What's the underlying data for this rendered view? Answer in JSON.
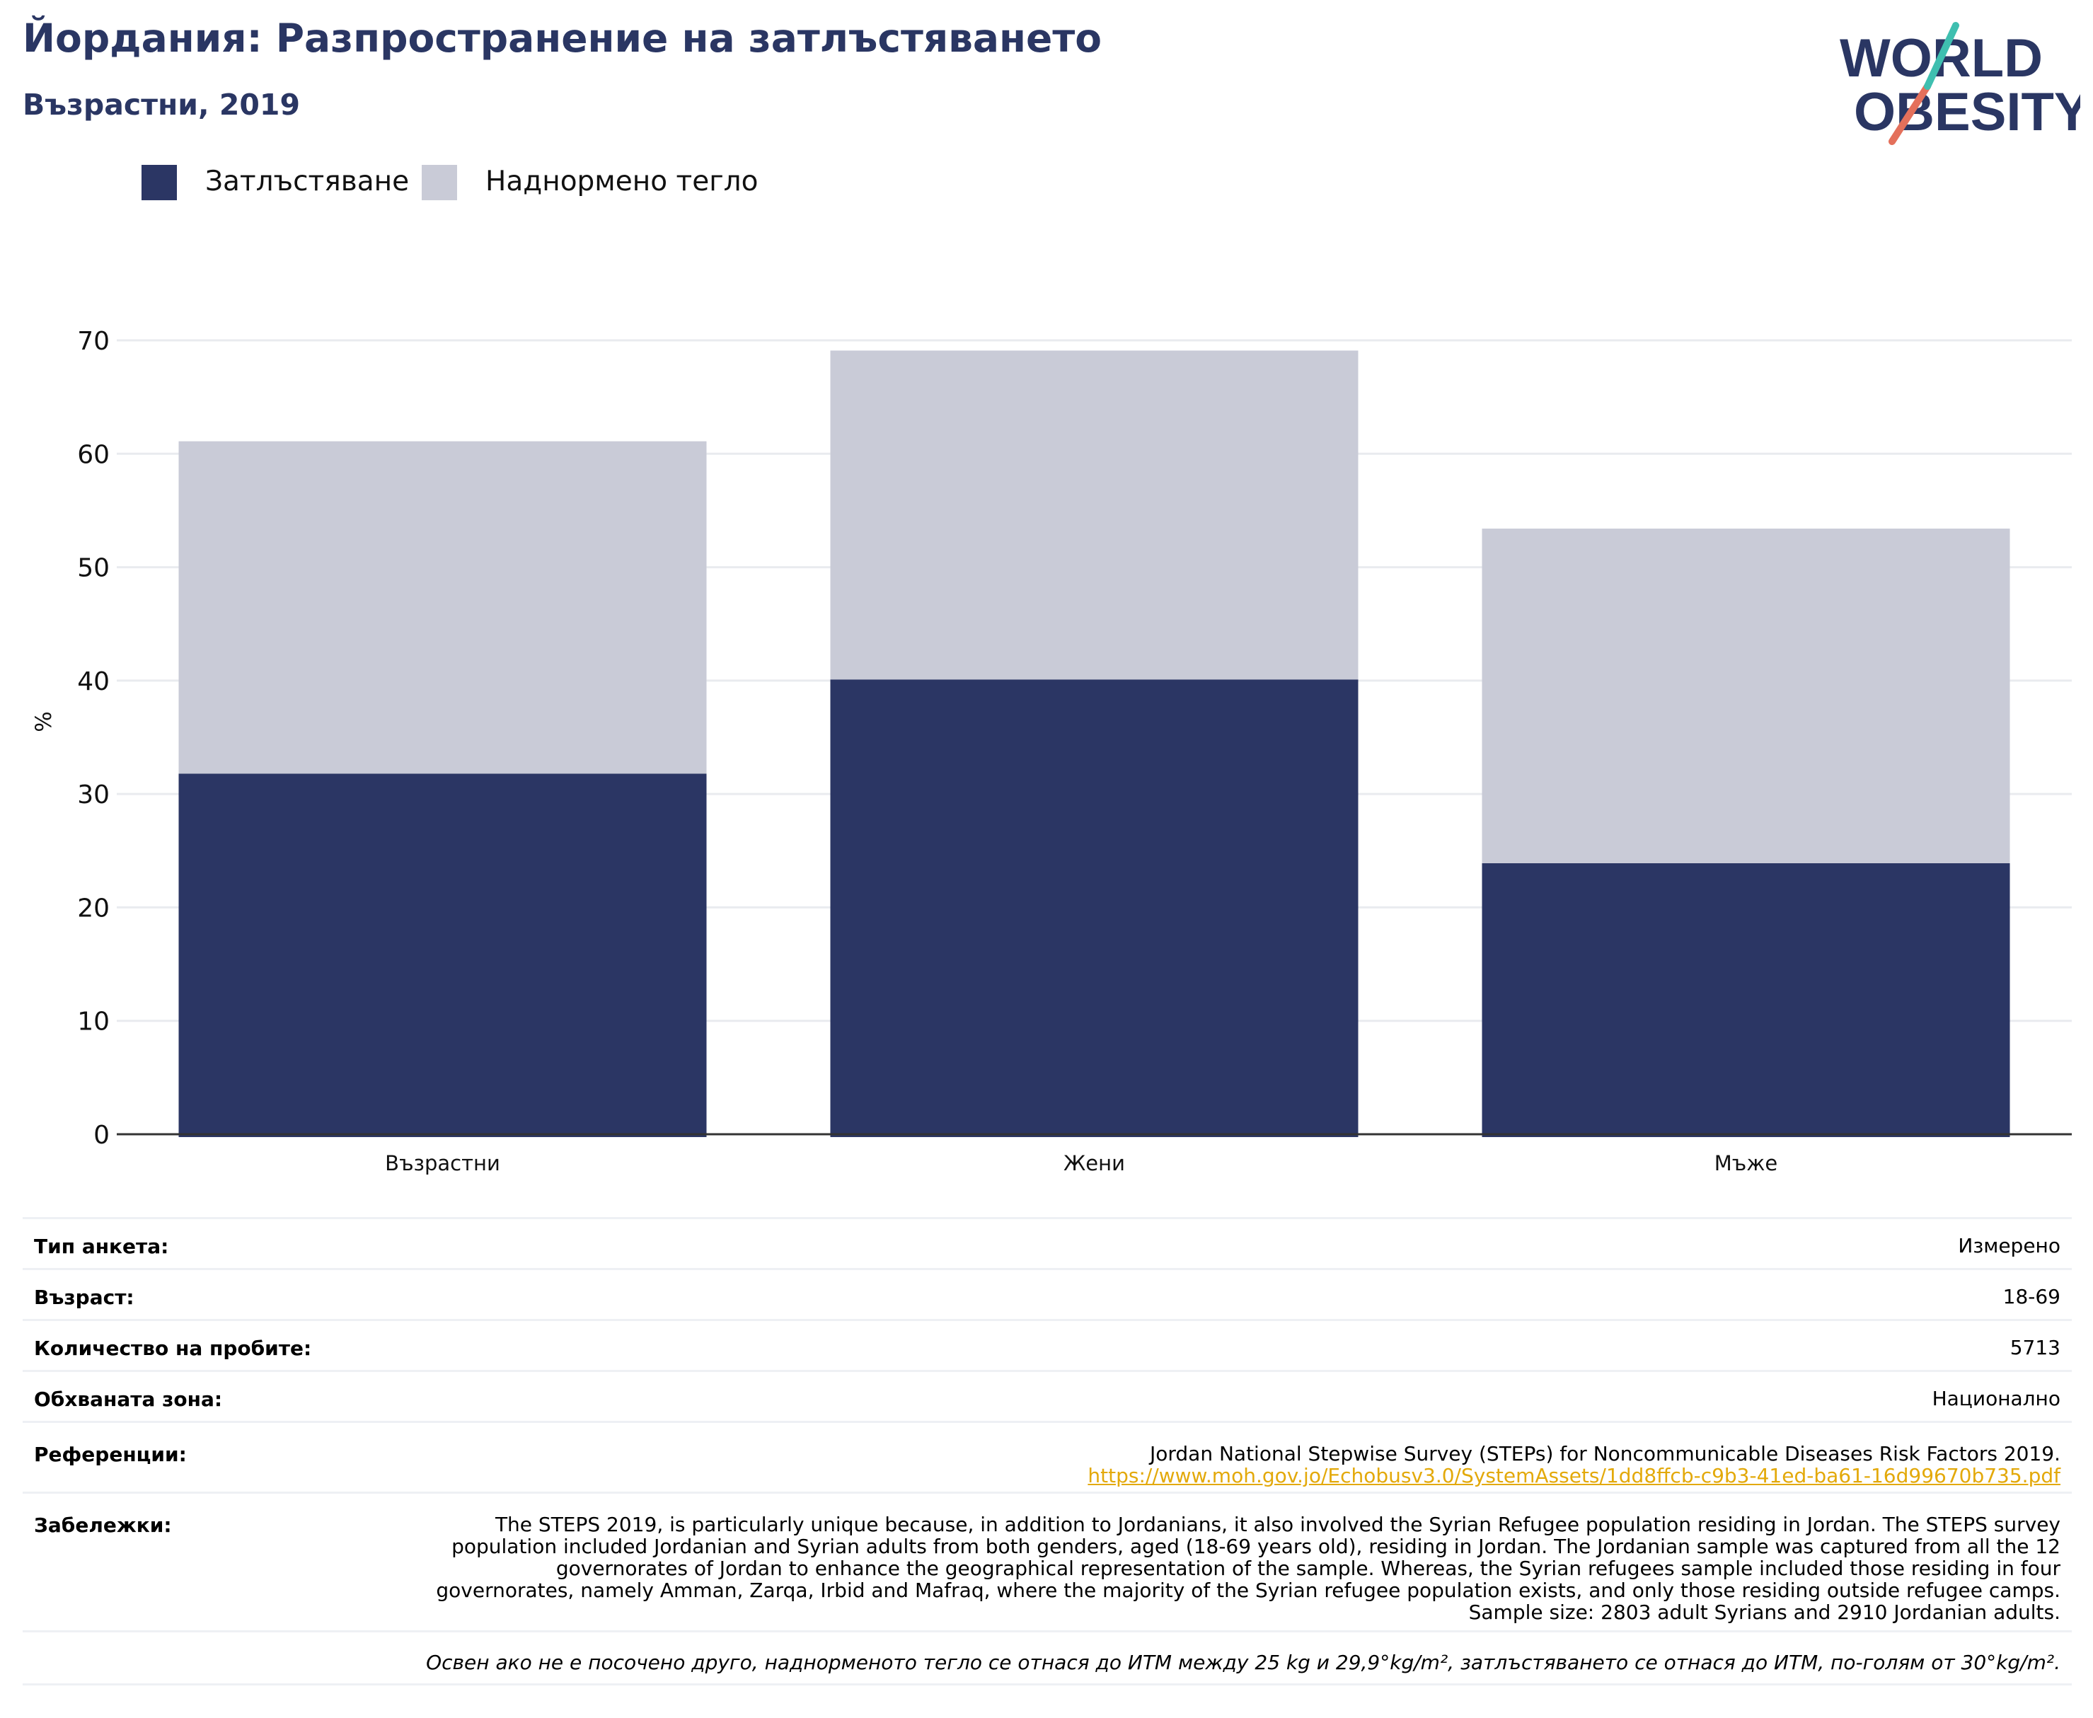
{
  "header": {
    "title": "Йордания: Разпространение на затлъстяването",
    "subtitle": "Възрастни, 2019"
  },
  "logo": {
    "line1": "WORLD",
    "line2": "OBESITY"
  },
  "legend": [
    {
      "label": "Затлъстяване",
      "color": "#2b3664"
    },
    {
      "label": "Наднормено тегло",
      "color": "#c9cbd7"
    }
  ],
  "chart_data": {
    "type": "bar",
    "stacked": true,
    "categories": [
      "Възрастни",
      "Жени",
      "Мъже"
    ],
    "series": [
      {
        "name": "Затлъстяване",
        "values": [
          31.8,
          40.1,
          23.9
        ],
        "color": "#2b3664"
      },
      {
        "name": "Наднормено тегло",
        "values": [
          29.3,
          29.0,
          29.5
        ],
        "color": "#c9cbd7"
      }
    ],
    "ylabel": "%",
    "xlabel": "",
    "ylim": [
      0,
      70
    ],
    "yticks": [
      0,
      10,
      20,
      30,
      40,
      50,
      60,
      70
    ],
    "grid": true,
    "legend_position": "top-left"
  },
  "info": {
    "survey_type": {
      "key": "Тип анкета:",
      "value": "Измерено"
    },
    "age": {
      "key": "Възраст:",
      "value": "18-69"
    },
    "sample_size": {
      "key": "Количество на пробите:",
      "value": "5713"
    },
    "area": {
      "key": "Обхваната зона:",
      "value": "Национално"
    },
    "references": {
      "key": "Референции:",
      "value": "Jordan National Stepwise Survey (STEPs) for Noncommunicable Diseases Risk Factors 2019.",
      "link": "https://www.moh.gov.jo/Echobusv3.0/SystemAssets/1dd8ffcb-c9b3-41ed-ba61-16d99670b735.pdf"
    },
    "notes": {
      "key": "Забележки:",
      "value": "The STEPS 2019, is particularly unique because, in addition to Jordanians, it also involved the Syrian Refugee population residing in Jordan. The STEPS survey population included Jordanian and Syrian adults from both genders, aged (18-69 years old), residing in Jordan. The Jordanian sample was captured from all the 12 governorates of Jordan to enhance the geographical representation of the sample. Whereas, the Syrian refugees sample included those residing in four governorates, namely Amman, Zarqa, Irbid and Mafraq, where the majority of the Syrian refugee population exists, and only those residing outside refugee camps. Sample size: 2803 adult Syrians and 2910 Jordanian adults."
    },
    "footnote": "Освен ако не е посочено друго, наднорменото тегло се отнася до ИТМ между 25 kg и 29,9°kg/m², затлъстяването се отнася до ИТМ, по-голям от 30°kg/m²."
  }
}
